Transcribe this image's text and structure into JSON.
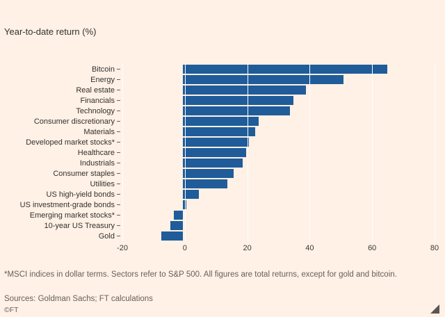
{
  "chart": {
    "subtitle": "Year-to-date return (%)",
    "footnote": "*MSCI indices in dollar terms. Sectors refer to S&P 500. All figures are total returns, except for gold and bitcoin.",
    "sources": "Sources: Goldman Sachs; FT calculations",
    "credit": "©FT"
  },
  "chart_data": {
    "type": "bar",
    "orientation": "horizontal",
    "title": "",
    "subtitle": "Year-to-date return (%)",
    "categories": [
      "Bitcoin",
      "Energy",
      "Real estate",
      "Financials",
      "Technology",
      "Consumer discretionary",
      "Materials",
      "Developed market stocks*",
      "Healthcare",
      "Industrials",
      "Consumer staples",
      "Utilities",
      "US high-yield bonds",
      "US investment-grade bonds",
      "Emerging market stocks*",
      "10-year US Treasury",
      "Gold"
    ],
    "values": [
      65,
      51,
      39,
      35,
      34,
      24,
      23,
      21,
      20,
      19,
      16,
      14,
      5,
      1,
      -3,
      -4,
      -7
    ],
    "xlabel": "",
    "ylabel": "",
    "xlim": [
      -20,
      80
    ],
    "xticks": [
      -20,
      0,
      20,
      40,
      60,
      80
    ],
    "bar_color": "#1F5C99",
    "grid": true,
    "gridline_color": "#FFFFFF",
    "background_color": "#FFF1E5",
    "legend_position": "none"
  }
}
